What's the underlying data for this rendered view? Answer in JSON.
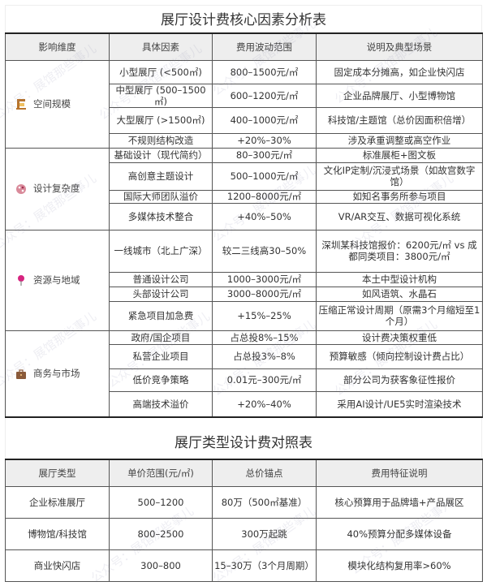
{
  "watermark": "公众号：展馆那些事儿",
  "table1": {
    "title": "展厅设计费核心因素分析表",
    "headers": [
      "影响维度",
      "具体因素",
      "费用波动范围",
      "说明及典型场景"
    ],
    "groups": [
      {
        "name": "空间规模",
        "icon": "easel-icon",
        "color": "#b8742c",
        "rows": [
          [
            "小型展厅 (<500㎡)",
            "800–1500元/㎡",
            "固定成本分摊高，如企业快闪店"
          ],
          [
            "中型展厅 (500–1500㎡)",
            "600–1200元/㎡",
            "企业品牌展厅、小型博物馆"
          ],
          [
            "大型展厅 (>1500㎡)",
            "400–1000元/㎡",
            "科技馆/主题馆（总价因面积倍增）"
          ],
          [
            "不规则结构改造",
            "+20%–30%",
            "涉及承重调整或高空作业"
          ]
        ]
      },
      {
        "name": "设计复杂度",
        "icon": "palette-icon",
        "color": "#d98a9a",
        "rows": [
          [
            "基础设计（现代简约）",
            "80–300元/㎡",
            "标准展柜+图文板"
          ],
          [
            "高创意主题设计",
            "500–1000元/㎡",
            "文化IP定制/沉浸式场景（如故宫数字馆）"
          ],
          [
            "国际大师团队溢价",
            "1200–8000元/㎡",
            "如知名事务所参与项目"
          ],
          [
            "多媒体技术整合",
            "+40%–50%",
            "VR/AR交互、数据可视化系统"
          ]
        ]
      },
      {
        "name": "资源与地域",
        "icon": "pin-icon",
        "color": "#d6247f",
        "rows": [
          [
            "一线城市（北上广深）",
            "较二三线高30–50%",
            "深圳某科技馆报价：6200元/㎡ vs 成都同类项目：3800元/㎡"
          ],
          [
            "普通设计公司",
            "1000–3000元/㎡",
            "本土中型设计机构"
          ],
          [
            "头部设计公司",
            "3000–8000元/㎡",
            "如风语筑、水晶石"
          ],
          [
            "紧急项目加急费",
            "+15%–25%",
            "压缩正常设计周期（原需3个月缩短至1个月）"
          ]
        ]
      },
      {
        "name": "商务与市场",
        "icon": "briefcase-icon",
        "color": "#8a5a3a",
        "rows": [
          [
            "政府/国企项目",
            "占总投8%–15%",
            "设计费决策权重低"
          ],
          [
            "私营企业项目",
            "占总投3%–8%",
            "预算敏感（倾向控制设计费占比）"
          ],
          [
            "低价竞争策略",
            "0.01元–300元/㎡",
            "部分公司为获客象征性报价"
          ],
          [
            "高端技术溢价",
            "+20%–40%",
            "采用AI设计/UE5实时渲染技术"
          ]
        ]
      }
    ]
  },
  "table2": {
    "title": "展厅类型设计费对照表",
    "headers": [
      "展厅类型",
      "单价范围(元/㎡)",
      "总价锚点",
      "费用特征说明"
    ],
    "rows": [
      [
        "企业标准展厅",
        "500–1200",
        "80万（500㎡基准）",
        "核心预算用于品牌墙+产品展区"
      ],
      [
        "博物馆/科技馆",
        "800–2500",
        "300万起跳",
        "40%预算分配多媒体设备"
      ],
      [
        "商业快闪店",
        "300–800",
        "15–30万（3个月周期）",
        "模块化结构复用率>60%"
      ]
    ]
  }
}
